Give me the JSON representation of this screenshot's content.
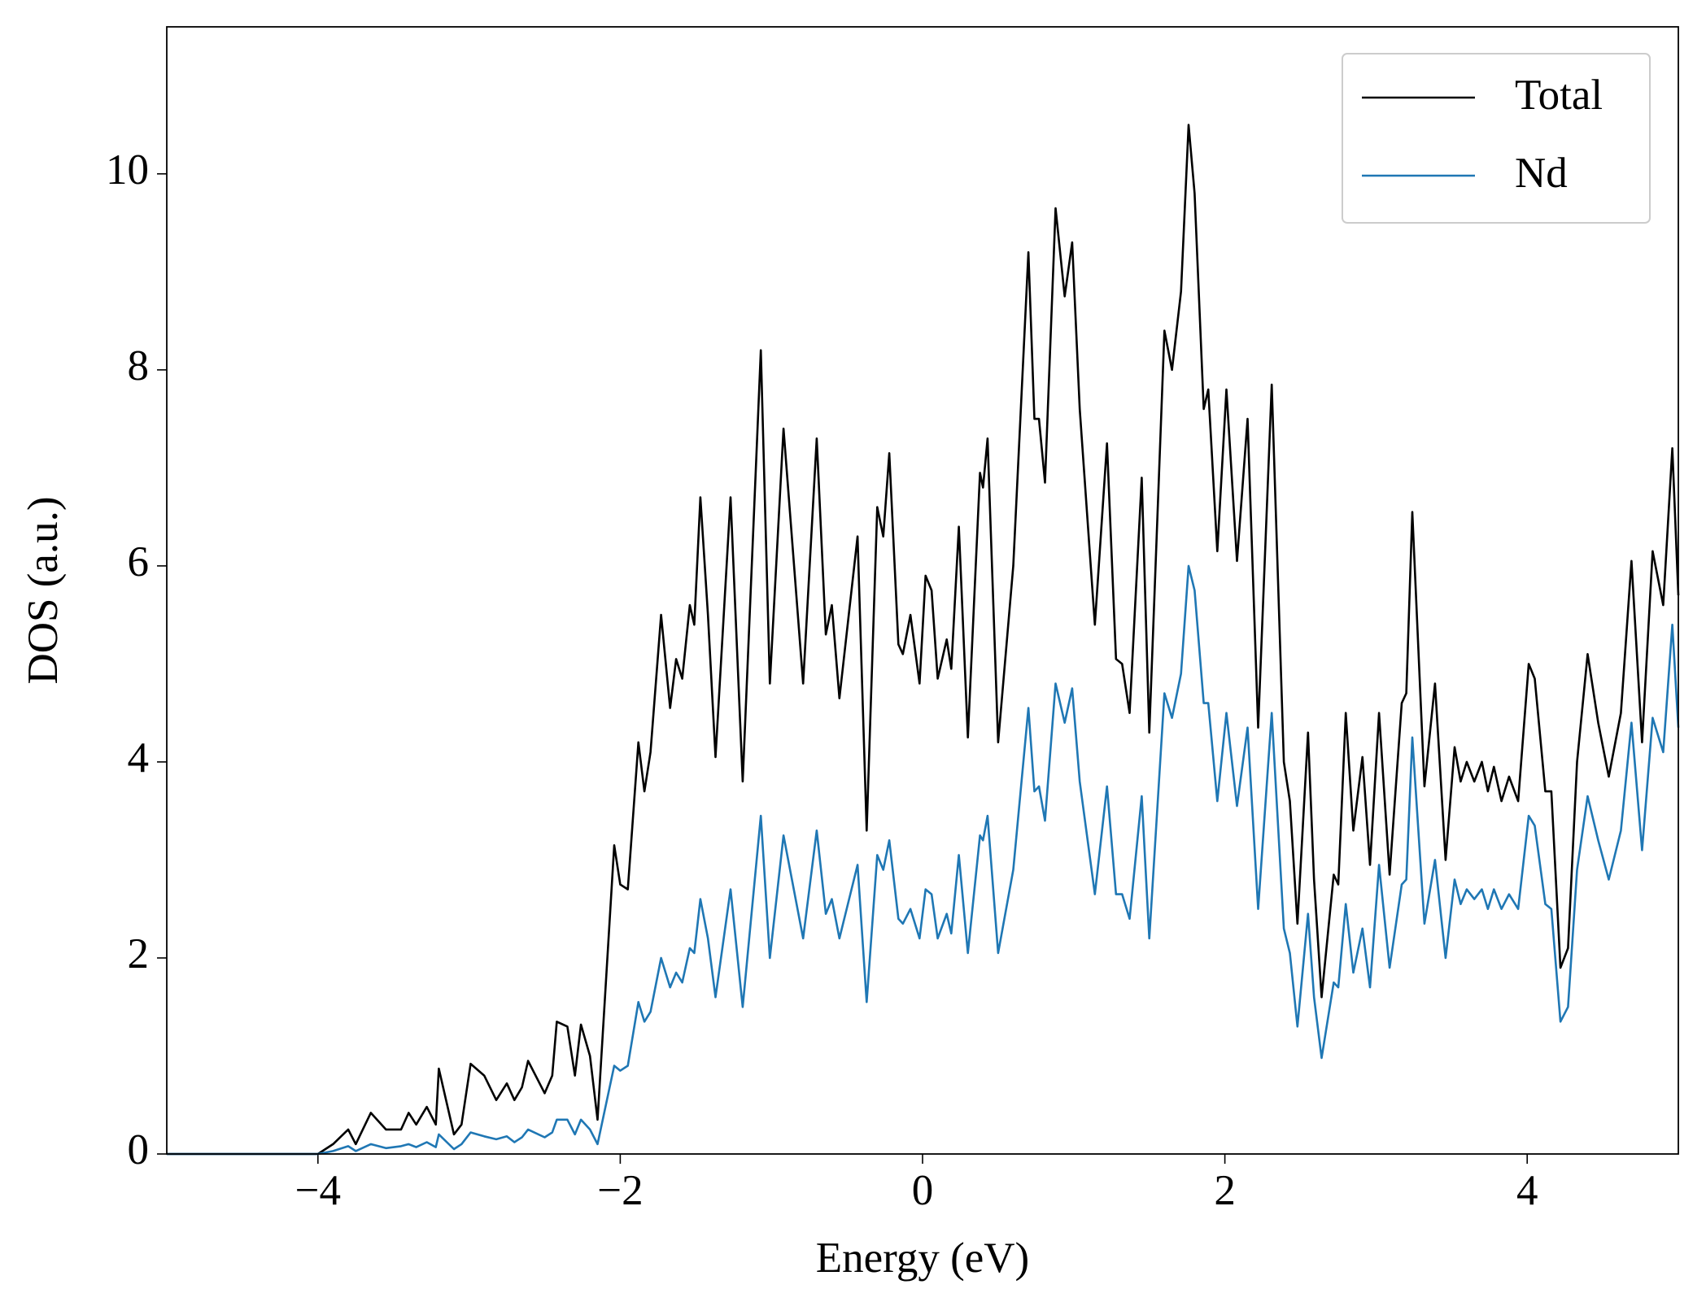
{
  "chart_data": {
    "type": "line",
    "xlabel": "Energy (eV)",
    "ylabel": "DOS (a.u.)",
    "xlim": [
      -5,
      5
    ],
    "ylim": [
      0,
      11.5
    ],
    "xticks": [
      {
        "value": -4,
        "label": "−4"
      },
      {
        "value": -2,
        "label": "−2"
      },
      0,
      2,
      4
    ],
    "yticks": [
      0,
      2,
      4,
      6,
      8,
      10
    ],
    "legend": "upper right",
    "x": [
      -5,
      -4,
      -3.9,
      -3.8,
      -3.75,
      -3.65,
      -3.55,
      -3.45,
      -3.4,
      -3.35,
      -3.28,
      -3.22,
      -3.2,
      -3.1,
      -3.05,
      -2.99,
      -2.9,
      -2.82,
      -2.75,
      -2.7,
      -2.65,
      -2.61,
      -2.5,
      -2.45,
      -2.42,
      -2.35,
      -2.3,
      -2.26,
      -2.2,
      -2.15,
      -2.04,
      -2.0,
      -1.95,
      -1.88,
      -1.84,
      -1.8,
      -1.73,
      -1.67,
      -1.63,
      -1.59,
      -1.54,
      -1.51,
      -1.47,
      -1.42,
      -1.37,
      -1.27,
      -1.19,
      -1.07,
      -1.01,
      -0.92,
      -0.79,
      -0.7,
      -0.64,
      -0.6,
      -0.55,
      -0.43,
      -0.37,
      -0.3,
      -0.26,
      -0.22,
      -0.16,
      -0.13,
      -0.08,
      -0.02,
      0.02,
      0.06,
      0.1,
      0.16,
      0.19,
      0.24,
      0.3,
      0.38,
      0.4,
      0.43,
      0.5,
      0.6,
      0.7,
      0.74,
      0.77,
      0.81,
      0.88,
      0.94,
      0.99,
      1.04,
      1.14,
      1.22,
      1.28,
      1.32,
      1.37,
      1.45,
      1.5,
      1.6,
      1.65,
      1.71,
      1.76,
      1.8,
      1.86,
      1.89,
      1.95,
      2.01,
      2.08,
      2.15,
      2.22,
      2.31,
      2.39,
      2.43,
      2.48,
      2.55,
      2.59,
      2.64,
      2.72,
      2.75,
      2.8,
      2.85,
      2.91,
      2.96,
      3.02,
      3.09,
      3.17,
      3.2,
      3.24,
      3.32,
      3.39,
      3.46,
      3.52,
      3.56,
      3.6,
      3.65,
      3.7,
      3.74,
      3.78,
      3.83,
      3.88,
      3.94,
      4.01,
      4.05,
      4.12,
      4.16,
      4.22,
      4.27,
      4.33,
      4.4,
      4.47,
      4.54,
      4.62,
      4.69,
      4.76,
      4.83,
      4.9,
      4.96,
      5.0
    ],
    "series": [
      {
        "name": "Total",
        "color": "#000000",
        "values": [
          0,
          0,
          0.1,
          0.25,
          0.1,
          0.42,
          0.25,
          0.25,
          0.42,
          0.3,
          0.48,
          0.3,
          0.87,
          0.2,
          0.3,
          0.92,
          0.8,
          0.55,
          0.72,
          0.55,
          0.68,
          0.95,
          0.62,
          0.8,
          1.35,
          1.3,
          0.8,
          1.32,
          1.0,
          0.35,
          3.15,
          2.75,
          2.7,
          4.2,
          3.7,
          4.1,
          5.5,
          4.55,
          5.05,
          4.85,
          5.6,
          5.4,
          6.7,
          5.5,
          4.05,
          6.7,
          3.8,
          8.2,
          4.8,
          7.4,
          4.8,
          7.3,
          5.3,
          5.6,
          4.65,
          6.3,
          3.3,
          6.6,
          6.3,
          7.15,
          5.2,
          5.1,
          5.5,
          4.8,
          5.9,
          5.75,
          4.85,
          5.25,
          4.95,
          6.4,
          4.25,
          6.95,
          6.8,
          7.3,
          4.2,
          6.0,
          9.2,
          7.5,
          7.5,
          6.85,
          9.65,
          8.75,
          9.3,
          7.6,
          5.4,
          7.25,
          5.05,
          5.0,
          4.5,
          6.9,
          4.3,
          8.4,
          8.0,
          8.8,
          10.5,
          9.8,
          7.6,
          7.8,
          6.15,
          7.8,
          6.05,
          7.5,
          4.35,
          7.85,
          4.0,
          3.6,
          2.35,
          4.3,
          2.8,
          1.6,
          2.85,
          2.75,
          4.5,
          3.3,
          4.05,
          2.95,
          4.5,
          2.85,
          4.6,
          4.7,
          6.55,
          3.75,
          4.8,
          3.0,
          4.15,
          3.8,
          4.0,
          3.8,
          4.0,
          3.7,
          3.95,
          3.6,
          3.85,
          3.6,
          5.0,
          4.85,
          3.7,
          3.7,
          1.9,
          2.1,
          4.0,
          5.1,
          4.4,
          3.85,
          4.5,
          6.05,
          4.2,
          6.15,
          5.6,
          7.2,
          5.7
        ]
      },
      {
        "name": "Nd",
        "color": "#1f77b4",
        "values": [
          0,
          0,
          0.03,
          0.08,
          0.03,
          0.1,
          0.06,
          0.08,
          0.1,
          0.07,
          0.12,
          0.07,
          0.2,
          0.05,
          0.1,
          0.22,
          0.18,
          0.15,
          0.18,
          0.12,
          0.17,
          0.25,
          0.17,
          0.22,
          0.35,
          0.35,
          0.2,
          0.35,
          0.25,
          0.1,
          0.9,
          0.85,
          0.9,
          1.55,
          1.35,
          1.45,
          2.0,
          1.7,
          1.85,
          1.75,
          2.1,
          2.05,
          2.6,
          2.2,
          1.6,
          2.7,
          1.5,
          3.45,
          2.0,
          3.25,
          2.2,
          3.3,
          2.45,
          2.6,
          2.2,
          2.95,
          1.55,
          3.05,
          2.9,
          3.2,
          2.4,
          2.35,
          2.5,
          2.2,
          2.7,
          2.65,
          2.2,
          2.45,
          2.25,
          3.05,
          2.05,
          3.25,
          3.2,
          3.45,
          2.05,
          2.9,
          4.55,
          3.7,
          3.75,
          3.4,
          4.8,
          4.4,
          4.75,
          3.8,
          2.65,
          3.75,
          2.65,
          2.65,
          2.4,
          3.65,
          2.2,
          4.7,
          4.45,
          4.9,
          6.0,
          5.75,
          4.6,
          4.6,
          3.6,
          4.5,
          3.55,
          4.35,
          2.5,
          4.5,
          2.3,
          2.05,
          1.3,
          2.45,
          1.6,
          0.98,
          1.75,
          1.7,
          2.55,
          1.85,
          2.3,
          1.7,
          2.95,
          1.9,
          2.75,
          2.8,
          4.25,
          2.35,
          3.0,
          2.0,
          2.8,
          2.55,
          2.7,
          2.6,
          2.7,
          2.5,
          2.7,
          2.5,
          2.65,
          2.5,
          3.45,
          3.35,
          2.55,
          2.5,
          1.35,
          1.5,
          2.9,
          3.65,
          3.2,
          2.8,
          3.3,
          4.4,
          3.1,
          4.45,
          4.1,
          5.4,
          4.35
        ]
      }
    ]
  }
}
